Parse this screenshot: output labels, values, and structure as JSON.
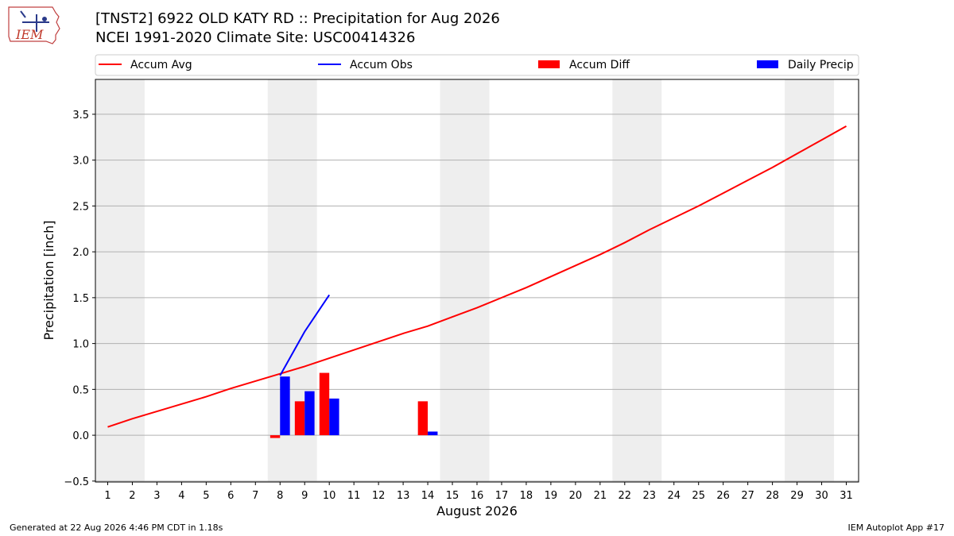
{
  "header": {
    "title_line1": "[TNST2] 6922 OLD KATY RD :: Precipitation for Aug 2026",
    "title_line2": "NCEI 1991-2020 Climate Site: USC00414326",
    "logo_text": "IEM"
  },
  "footer": {
    "generated": "Generated at 22 Aug 2026 4:46 PM CDT in 1.18s",
    "app": "IEM Autoplot App #17"
  },
  "colors": {
    "accum_avg": "#ff0000",
    "accum_obs": "#0000ff",
    "accum_diff": "#ff0000",
    "daily_precip": "#0000ff",
    "weekend_shade": "#eeeeee",
    "grid": "#b0b0b0"
  },
  "chart_data": {
    "type": "bar",
    "xlabel": "August 2026",
    "ylabel": "Precipitation [inch]",
    "xlim": [
      0.5,
      31.5
    ],
    "ylim": [
      -0.51,
      3.88
    ],
    "yticks": [
      -0.5,
      0.0,
      0.5,
      1.0,
      1.5,
      2.0,
      2.5,
      3.0,
      3.5
    ],
    "ytick_labels": [
      "−0.5",
      "0.0",
      "0.5",
      "1.0",
      "1.5",
      "2.0",
      "2.5",
      "3.0",
      "3.5"
    ],
    "grid": "horizontal",
    "legend_position": "top",
    "legend": [
      "Accum Avg",
      "Accum Obs",
      "Accum Diff",
      "Daily Precip"
    ],
    "x": [
      1,
      2,
      3,
      4,
      5,
      6,
      7,
      8,
      9,
      10,
      11,
      12,
      13,
      14,
      15,
      16,
      17,
      18,
      19,
      20,
      21,
      22,
      23,
      24,
      25,
      26,
      27,
      28,
      29,
      30,
      31
    ],
    "weekend_spans": [
      [
        0.5,
        2.5
      ],
      [
        7.5,
        9.5
      ],
      [
        14.5,
        16.5
      ],
      [
        21.5,
        23.5
      ],
      [
        28.5,
        30.5
      ]
    ],
    "series": [
      {
        "name": "Accum Avg",
        "kind": "line",
        "x": [
          1,
          2,
          3,
          4,
          5,
          6,
          7,
          8,
          9,
          10,
          11,
          12,
          13,
          14,
          15,
          16,
          17,
          18,
          19,
          20,
          21,
          22,
          23,
          24,
          25,
          26,
          27,
          28,
          29,
          30,
          31
        ],
        "values": [
          0.09,
          0.18,
          0.26,
          0.34,
          0.42,
          0.51,
          0.59,
          0.67,
          0.75,
          0.84,
          0.93,
          1.02,
          1.11,
          1.19,
          1.29,
          1.39,
          1.5,
          1.61,
          1.73,
          1.85,
          1.97,
          2.1,
          2.24,
          2.37,
          2.5,
          2.64,
          2.78,
          2.92,
          3.07,
          3.22,
          3.37
        ]
      },
      {
        "name": "Accum Obs",
        "kind": "line",
        "x": [
          8,
          9,
          10
        ],
        "values": [
          0.65,
          1.13,
          1.53
        ]
      },
      {
        "name": "Accum Diff",
        "kind": "bar",
        "offset": -0.2,
        "x": [
          8,
          9,
          10,
          14
        ],
        "values": [
          -0.03,
          0.37,
          0.68,
          0.37
        ]
      },
      {
        "name": "Daily Precip",
        "kind": "bar",
        "offset": 0.2,
        "x": [
          8,
          9,
          10,
          14
        ],
        "values": [
          0.64,
          0.48,
          0.4,
          0.04
        ]
      }
    ]
  }
}
